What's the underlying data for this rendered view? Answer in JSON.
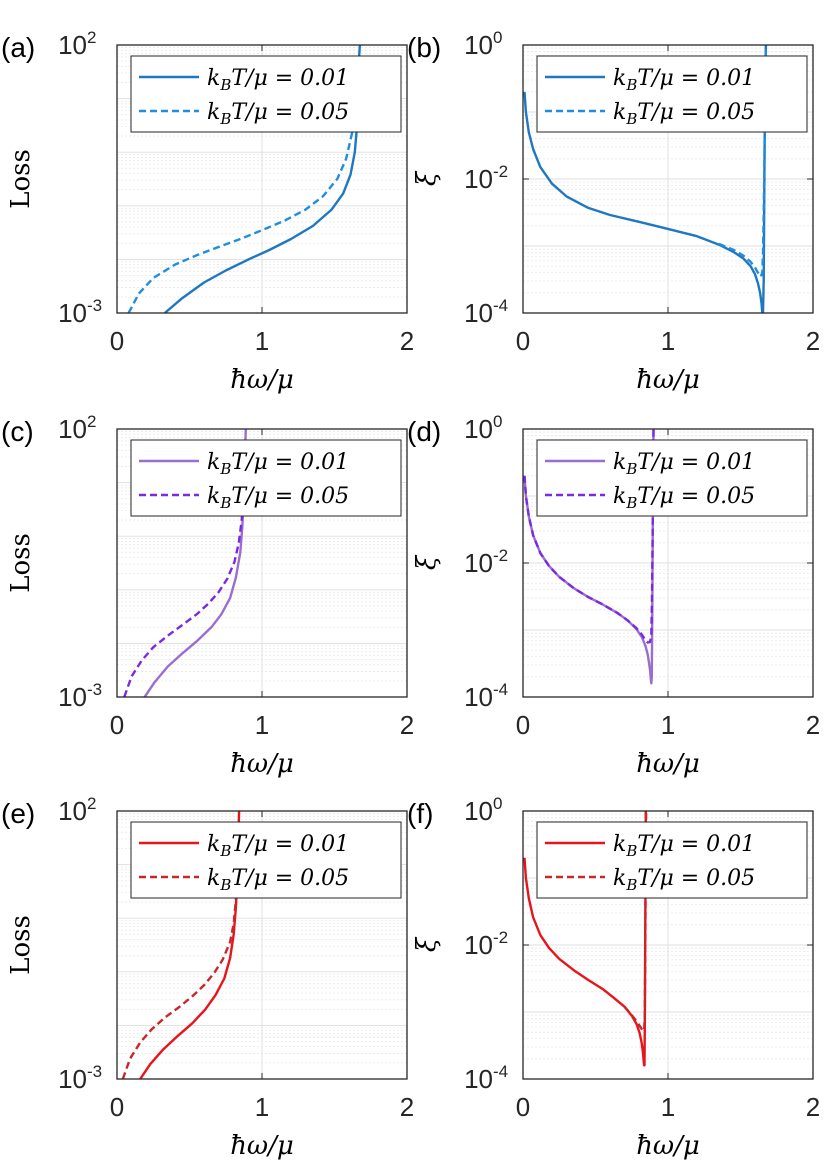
{
  "chart_data": [
    {
      "panel": "(a)",
      "type": "line",
      "yscale": "log",
      "ylabel": "Loss",
      "xlabel": "ħω/μ",
      "xlim": [
        0,
        2
      ],
      "ylim": [
        0.001,
        100
      ],
      "xticks": [
        "0",
        "1",
        "2"
      ],
      "yticks": [
        {
          "base": "10",
          "exp": "2",
          "value": 100
        },
        {
          "base": "10",
          "exp": "-3",
          "value": 0.001
        }
      ],
      "legend_position": "top-right",
      "series": [
        {
          "name": "k_BT/μ = 0.01",
          "label_lhs": "k",
          "label_sub": "B",
          "label_rhs": "T/μ = 0.01",
          "color": "#1f77c4",
          "dash": "solid",
          "x": [
            0.33,
            0.45,
            0.6,
            0.75,
            0.9,
            1.05,
            1.2,
            1.35,
            1.48,
            1.56,
            1.61,
            1.64,
            1.655,
            1.665,
            1.67,
            1.675
          ],
          "y": [
            0.001,
            0.0019,
            0.0037,
            0.0062,
            0.0098,
            0.015,
            0.024,
            0.042,
            0.085,
            0.17,
            0.38,
            1.0,
            3.0,
            15,
            60,
            100
          ]
        },
        {
          "name": "k_BT/μ = 0.05",
          "label_lhs": "k",
          "label_sub": "B",
          "label_rhs": "T/μ = 0.05",
          "color": "#1f8ee0",
          "dash": "dashed",
          "x": [
            0.08,
            0.15,
            0.25,
            0.4,
            0.55,
            0.7,
            0.85,
            1.0,
            1.15,
            1.3,
            1.42,
            1.52,
            1.58,
            1.62,
            1.645,
            1.66
          ],
          "y": [
            0.001,
            0.0023,
            0.0045,
            0.008,
            0.012,
            0.017,
            0.024,
            0.035,
            0.052,
            0.085,
            0.15,
            0.32,
            0.75,
            2.2,
            8.0,
            30
          ]
        }
      ]
    },
    {
      "panel": "(b)",
      "type": "line",
      "yscale": "log",
      "ylabel": "ξ",
      "xlabel": "ħω/μ",
      "xlim": [
        0,
        2
      ],
      "ylim": [
        0.0001,
        1
      ],
      "xticks": [
        "0",
        "1",
        "2"
      ],
      "yticks": [
        {
          "base": "10",
          "exp": "0",
          "value": 1
        },
        {
          "base": "10",
          "exp": "-2",
          "value": 0.01
        },
        {
          "base": "10",
          "exp": "-4",
          "value": 0.0001
        }
      ],
      "legend_position": "top-right",
      "series": [
        {
          "name": "k_BT/μ = 0.01",
          "label_lhs": "k",
          "label_sub": "B",
          "label_rhs": "T/μ = 0.01",
          "color": "#1f77c4",
          "dash": "solid",
          "x": [
            0.01,
            0.02,
            0.04,
            0.07,
            0.12,
            0.2,
            0.3,
            0.45,
            0.6,
            0.8,
            1.0,
            1.2,
            1.35,
            1.45,
            1.52,
            1.57,
            1.6,
            1.62,
            1.635,
            1.645,
            1.65,
            1.655,
            1.66,
            1.665,
            1.67,
            1.675
          ],
          "y": [
            0.2,
            0.1,
            0.05,
            0.028,
            0.015,
            0.0085,
            0.0055,
            0.0037,
            0.0029,
            0.0023,
            0.0018,
            0.0014,
            0.00105,
            0.00082,
            0.00065,
            0.0005,
            0.00038,
            0.00028,
            0.0002,
            0.00014,
            0.0001,
            0.0001,
            0.0003,
            0.01,
            0.3,
            1.0
          ]
        },
        {
          "name": "k_BT/μ = 0.05",
          "label_lhs": "k",
          "label_sub": "B",
          "label_rhs": "T/μ = 0.05",
          "color": "#1f8ee0",
          "dash": "dashed",
          "x": [
            1.35,
            1.45,
            1.52,
            1.57,
            1.6,
            1.62,
            1.64,
            1.65,
            1.655,
            1.66,
            1.665,
            1.67,
            1.675
          ],
          "y": [
            0.00108,
            0.00088,
            0.00072,
            0.00058,
            0.00048,
            0.0004,
            0.00035,
            0.0004,
            0.0008,
            0.003,
            0.02,
            0.15,
            1.0
          ]
        }
      ]
    },
    {
      "panel": "(c)",
      "type": "line",
      "yscale": "log",
      "ylabel": "Loss",
      "xlabel": "ħω/μ",
      "xlim": [
        0,
        2
      ],
      "ylim": [
        0.001,
        100
      ],
      "xticks": [
        "0",
        "1",
        "2"
      ],
      "yticks": [
        {
          "base": "10",
          "exp": "2",
          "value": 100
        },
        {
          "base": "10",
          "exp": "-3",
          "value": 0.001
        }
      ],
      "legend_position": "top-right",
      "series": [
        {
          "name": "k_BT/μ = 0.01",
          "label_lhs": "k",
          "label_sub": "B",
          "label_rhs": "T/μ = 0.01",
          "color": "#9a6ed0",
          "dash": "solid",
          "x": [
            0.19,
            0.26,
            0.35,
            0.45,
            0.55,
            0.65,
            0.72,
            0.78,
            0.82,
            0.85,
            0.865,
            0.875,
            0.882,
            0.888
          ],
          "y": [
            0.001,
            0.0019,
            0.0037,
            0.0065,
            0.011,
            0.02,
            0.035,
            0.07,
            0.17,
            0.5,
            1.6,
            6.0,
            30,
            100
          ]
        },
        {
          "name": "k_BT/μ = 0.05",
          "label_lhs": "k",
          "label_sub": "B",
          "label_rhs": "T/μ = 0.05",
          "color": "#7a2be2",
          "dash": "dashed",
          "x": [
            0.05,
            0.1,
            0.17,
            0.25,
            0.35,
            0.45,
            0.55,
            0.63,
            0.7,
            0.76,
            0.81,
            0.84,
            0.86,
            0.872,
            0.88,
            0.885
          ],
          "y": [
            0.001,
            0.0024,
            0.0048,
            0.0085,
            0.014,
            0.022,
            0.035,
            0.055,
            0.09,
            0.16,
            0.33,
            0.75,
            2.0,
            6.0,
            20,
            60
          ]
        }
      ]
    },
    {
      "panel": "(d)",
      "type": "line",
      "yscale": "log",
      "ylabel": "ξ",
      "xlabel": "ħω/μ",
      "xlim": [
        0,
        2
      ],
      "ylim": [
        0.0001,
        1
      ],
      "xticks": [
        "0",
        "1",
        "2"
      ],
      "yticks": [
        {
          "base": "10",
          "exp": "0",
          "value": 1
        },
        {
          "base": "10",
          "exp": "-2",
          "value": 0.01
        },
        {
          "base": "10",
          "exp": "-4",
          "value": 0.0001
        }
      ],
      "legend_position": "top-right",
      "series": [
        {
          "name": "k_BT/μ = 0.01",
          "label_lhs": "k",
          "label_sub": "B",
          "label_rhs": "T/μ = 0.01",
          "color": "#9a6ed0",
          "dash": "solid",
          "x": [
            0.01,
            0.02,
            0.04,
            0.07,
            0.12,
            0.18,
            0.25,
            0.35,
            0.45,
            0.55,
            0.65,
            0.72,
            0.78,
            0.82,
            0.845,
            0.86,
            0.87,
            0.877,
            0.882,
            0.885,
            0.888,
            0.892,
            0.896,
            0.9
          ],
          "y": [
            0.2,
            0.1,
            0.05,
            0.026,
            0.014,
            0.009,
            0.0062,
            0.0042,
            0.0031,
            0.0024,
            0.0018,
            0.0014,
            0.00105,
            0.00078,
            0.00058,
            0.00043,
            0.00032,
            0.00024,
            0.00018,
            0.00016,
            0.0002,
            0.002,
            0.08,
            1.0
          ]
        },
        {
          "name": "k_BT/μ = 0.05",
          "label_lhs": "k",
          "label_sub": "B",
          "label_rhs": "T/μ = 0.05",
          "color": "#7a2be2",
          "dash": "dashed",
          "x": [
            0.01,
            0.02,
            0.04,
            0.07,
            0.12,
            0.18,
            0.25,
            0.35,
            0.45,
            0.55,
            0.65,
            0.72,
            0.78,
            0.82,
            0.845,
            0.86,
            0.875,
            0.885,
            0.89,
            0.895,
            0.9
          ],
          "y": [
            0.2,
            0.1,
            0.05,
            0.026,
            0.014,
            0.009,
            0.0062,
            0.0042,
            0.0031,
            0.0024,
            0.0018,
            0.0014,
            0.00108,
            0.00085,
            0.0007,
            0.00065,
            0.00066,
            0.0008,
            0.003,
            0.05,
            1.0
          ]
        }
      ]
    },
    {
      "panel": "(e)",
      "type": "line",
      "yscale": "log",
      "ylabel": "Loss",
      "xlabel": "ħω/μ",
      "xlim": [
        0,
        2
      ],
      "ylim": [
        0.001,
        100
      ],
      "xticks": [
        "0",
        "1",
        "2"
      ],
      "yticks": [
        {
          "base": "10",
          "exp": "2",
          "value": 100
        },
        {
          "base": "10",
          "exp": "-3",
          "value": 0.001
        }
      ],
      "legend_position": "top-right",
      "series": [
        {
          "name": "k_BT/μ = 0.01",
          "label_lhs": "k",
          "label_sub": "B",
          "label_rhs": "T/μ = 0.01",
          "color": "#e8141c",
          "dash": "solid",
          "x": [
            0.16,
            0.23,
            0.32,
            0.42,
            0.52,
            0.61,
            0.68,
            0.74,
            0.78,
            0.805,
            0.82,
            0.83,
            0.837,
            0.842
          ],
          "y": [
            0.001,
            0.0019,
            0.0036,
            0.0064,
            0.011,
            0.02,
            0.037,
            0.075,
            0.18,
            0.5,
            1.6,
            6.0,
            30,
            100
          ]
        },
        {
          "name": "k_BT/μ = 0.05",
          "label_lhs": "k",
          "label_sub": "B",
          "label_rhs": "T/μ = 0.05",
          "color": "#c8282c",
          "dash": "dashed",
          "x": [
            0.04,
            0.09,
            0.16,
            0.24,
            0.33,
            0.43,
            0.52,
            0.6,
            0.67,
            0.73,
            0.78,
            0.805,
            0.82,
            0.83,
            0.836
          ],
          "y": [
            0.001,
            0.0024,
            0.0048,
            0.0085,
            0.014,
            0.022,
            0.035,
            0.056,
            0.095,
            0.17,
            0.36,
            0.8,
            2.2,
            7.0,
            25
          ]
        }
      ]
    },
    {
      "panel": "(f)",
      "type": "line",
      "yscale": "log",
      "ylabel": "ξ",
      "xlabel": "ħω/μ",
      "xlim": [
        0,
        2
      ],
      "ylim": [
        0.0001,
        1
      ],
      "xticks": [
        "0",
        "1",
        "2"
      ],
      "yticks": [
        {
          "base": "10",
          "exp": "0",
          "value": 1
        },
        {
          "base": "10",
          "exp": "-2",
          "value": 0.01
        },
        {
          "base": "10",
          "exp": "-4",
          "value": 0.0001
        }
      ],
      "legend_position": "top-right",
      "series": [
        {
          "name": "k_BT/μ = 0.01",
          "label_lhs": "k",
          "label_sub": "B",
          "label_rhs": "T/μ = 0.01",
          "color": "#e8141c",
          "dash": "solid",
          "x": [
            0.01,
            0.02,
            0.04,
            0.07,
            0.12,
            0.18,
            0.25,
            0.35,
            0.45,
            0.55,
            0.63,
            0.7,
            0.75,
            0.785,
            0.805,
            0.818,
            0.826,
            0.831,
            0.835,
            0.838,
            0.841,
            0.844,
            0.847
          ],
          "y": [
            0.2,
            0.1,
            0.05,
            0.026,
            0.014,
            0.009,
            0.0062,
            0.0042,
            0.003,
            0.0022,
            0.0016,
            0.0012,
            0.00088,
            0.00065,
            0.00048,
            0.00035,
            0.00026,
            0.0002,
            0.00016,
            0.00016,
            0.001,
            0.05,
            1.0
          ]
        },
        {
          "name": "k_BT/μ = 0.05",
          "label_lhs": "k",
          "label_sub": "B",
          "label_rhs": "T/μ = 0.05",
          "color": "#c8282c",
          "dash": "dashed",
          "x": [
            0.7,
            0.75,
            0.785,
            0.805,
            0.818,
            0.828,
            0.836,
            0.84,
            0.843,
            0.846,
            0.849
          ],
          "y": [
            0.0012,
            0.0009,
            0.00072,
            0.00062,
            0.00056,
            0.00052,
            0.00055,
            0.0009,
            0.006,
            0.1,
            1.0
          ]
        }
      ]
    }
  ]
}
